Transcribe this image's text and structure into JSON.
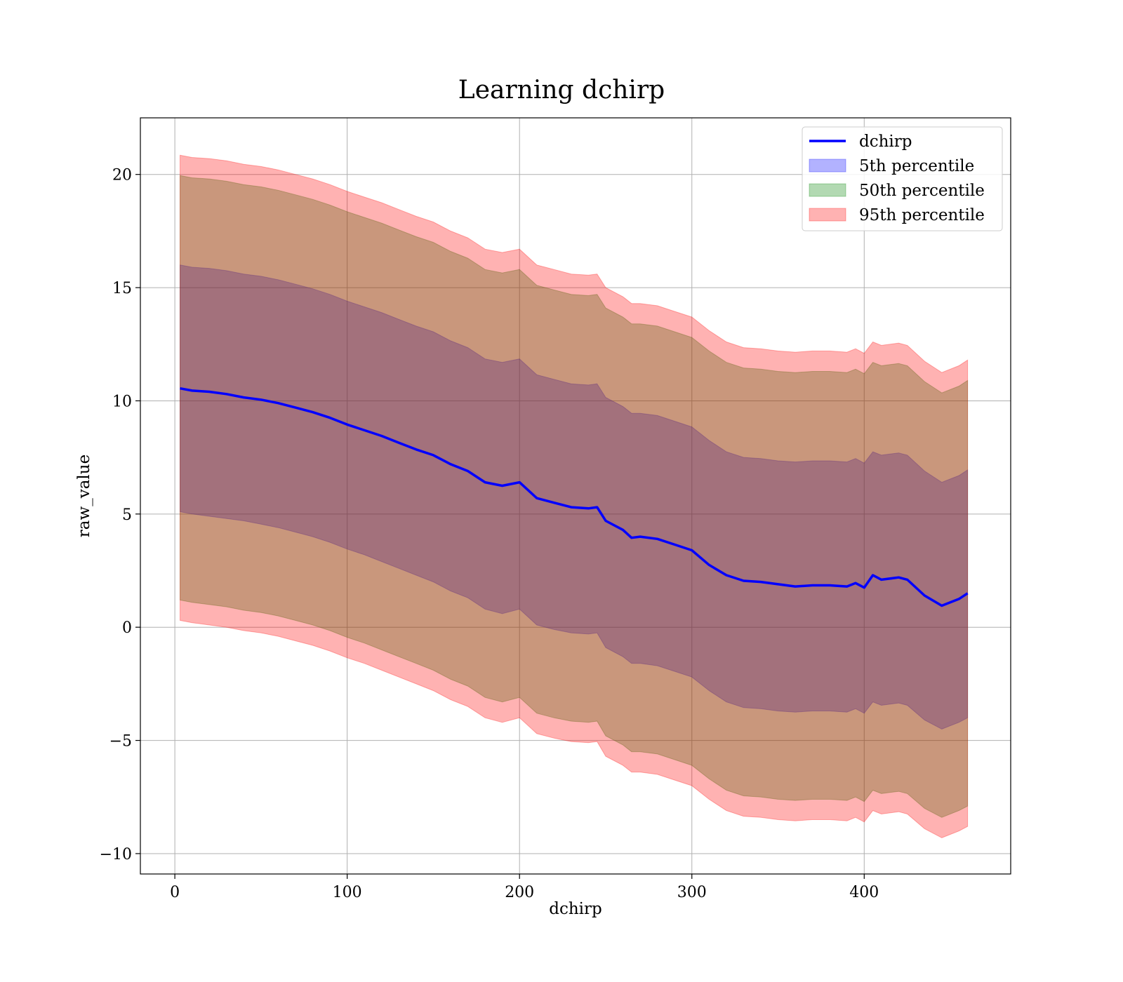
{
  "chart_data": {
    "type": "line",
    "title": "Learning dchirp",
    "xlabel": "dchirp",
    "ylabel": "raw_value",
    "xlim": [
      -20,
      485
    ],
    "ylim": [
      -10.9,
      22.5
    ],
    "xticks": [
      0,
      100,
      200,
      300,
      400
    ],
    "yticks": [
      -10,
      -5,
      0,
      5,
      10,
      15,
      20
    ],
    "xtick_labels": [
      "0",
      "100",
      "200",
      "300",
      "400"
    ],
    "ytick_labels": [
      "−10",
      "−5",
      "0",
      "5",
      "10",
      "15",
      "20"
    ],
    "grid": true,
    "legend_position": "upper right",
    "x": [
      3,
      10,
      20,
      30,
      40,
      50,
      60,
      70,
      80,
      90,
      100,
      110,
      120,
      130,
      140,
      150,
      160,
      170,
      180,
      190,
      200,
      210,
      220,
      230,
      240,
      245,
      250,
      260,
      265,
      270,
      280,
      290,
      300,
      310,
      320,
      330,
      340,
      350,
      360,
      370,
      380,
      390,
      395,
      400,
      405,
      410,
      420,
      425,
      435,
      445,
      455,
      460
    ],
    "series": [
      {
        "name": "dchirp",
        "color": "#0000ff",
        "values": [
          10.55,
          10.45,
          10.4,
          10.3,
          10.15,
          10.05,
          9.9,
          9.7,
          9.5,
          9.25,
          8.95,
          8.7,
          8.45,
          8.15,
          7.85,
          7.6,
          7.2,
          6.9,
          6.4,
          6.25,
          6.4,
          5.7,
          5.5,
          5.3,
          5.25,
          5.3,
          4.7,
          4.3,
          3.95,
          4.0,
          3.9,
          3.65,
          3.4,
          2.75,
          2.3,
          2.05,
          2.0,
          1.9,
          1.8,
          1.85,
          1.85,
          1.8,
          1.95,
          1.75,
          2.3,
          2.1,
          2.2,
          2.1,
          1.4,
          0.95,
          1.25,
          1.5
        ]
      },
      {
        "name": "5th percentile",
        "color": "#0000ff",
        "lower": [
          5.1,
          5.0,
          4.9,
          4.8,
          4.7,
          4.55,
          4.4,
          4.2,
          4.0,
          3.75,
          3.45,
          3.2,
          2.9,
          2.6,
          2.3,
          2.0,
          1.6,
          1.3,
          0.8,
          0.6,
          0.8,
          0.1,
          -0.1,
          -0.25,
          -0.3,
          -0.25,
          -0.9,
          -1.3,
          -1.6,
          -1.6,
          -1.7,
          -1.95,
          -2.2,
          -2.8,
          -3.3,
          -3.55,
          -3.6,
          -3.7,
          -3.75,
          -3.7,
          -3.7,
          -3.75,
          -3.6,
          -3.8,
          -3.3,
          -3.45,
          -3.35,
          -3.45,
          -4.1,
          -4.5,
          -4.2,
          -4.0
        ],
        "upper": [
          16.0,
          15.9,
          15.85,
          15.75,
          15.6,
          15.5,
          15.35,
          15.15,
          14.95,
          14.7,
          14.4,
          14.15,
          13.9,
          13.6,
          13.3,
          13.05,
          12.65,
          12.35,
          11.85,
          11.7,
          11.85,
          11.15,
          10.95,
          10.75,
          10.7,
          10.75,
          10.15,
          9.75,
          9.45,
          9.45,
          9.35,
          9.1,
          8.85,
          8.25,
          7.75,
          7.5,
          7.45,
          7.35,
          7.3,
          7.35,
          7.35,
          7.3,
          7.45,
          7.25,
          7.75,
          7.6,
          7.7,
          7.6,
          6.9,
          6.4,
          6.7,
          6.95
        ]
      },
      {
        "name": "50th percentile",
        "color": "#008000",
        "lower": [
          1.2,
          1.1,
          1.0,
          0.9,
          0.75,
          0.65,
          0.5,
          0.3,
          0.1,
          -0.15,
          -0.45,
          -0.7,
          -1.0,
          -1.3,
          -1.6,
          -1.9,
          -2.3,
          -2.6,
          -3.1,
          -3.3,
          -3.1,
          -3.8,
          -4.0,
          -4.15,
          -4.2,
          -4.15,
          -4.8,
          -5.2,
          -5.5,
          -5.5,
          -5.6,
          -5.85,
          -6.1,
          -6.7,
          -7.2,
          -7.45,
          -7.5,
          -7.6,
          -7.65,
          -7.6,
          -7.6,
          -7.65,
          -7.5,
          -7.7,
          -7.2,
          -7.35,
          -7.25,
          -7.35,
          -8.0,
          -8.4,
          -8.1,
          -7.9
        ],
        "upper": [
          19.95,
          19.85,
          19.8,
          19.7,
          19.55,
          19.45,
          19.3,
          19.1,
          18.9,
          18.65,
          18.35,
          18.1,
          17.85,
          17.55,
          17.25,
          17.0,
          16.6,
          16.3,
          15.8,
          15.65,
          15.8,
          15.1,
          14.9,
          14.7,
          14.65,
          14.7,
          14.1,
          13.7,
          13.4,
          13.4,
          13.3,
          13.05,
          12.8,
          12.2,
          11.7,
          11.45,
          11.4,
          11.3,
          11.25,
          11.3,
          11.3,
          11.25,
          11.4,
          11.2,
          11.7,
          11.55,
          11.65,
          11.55,
          10.85,
          10.35,
          10.65,
          10.9
        ]
      },
      {
        "name": "95th percentile",
        "color": "#ff0000",
        "lower": [
          0.3,
          0.2,
          0.1,
          0.0,
          -0.15,
          -0.25,
          -0.4,
          -0.6,
          -0.8,
          -1.05,
          -1.35,
          -1.6,
          -1.9,
          -2.2,
          -2.5,
          -2.8,
          -3.2,
          -3.5,
          -4.0,
          -4.2,
          -4.0,
          -4.7,
          -4.9,
          -5.05,
          -5.1,
          -5.05,
          -5.7,
          -6.1,
          -6.4,
          -6.4,
          -6.5,
          -6.75,
          -7.0,
          -7.6,
          -8.1,
          -8.35,
          -8.4,
          -8.5,
          -8.55,
          -8.5,
          -8.5,
          -8.55,
          -8.4,
          -8.6,
          -8.1,
          -8.25,
          -8.15,
          -8.25,
          -8.9,
          -9.3,
          -9.0,
          -8.8
        ],
        "upper": [
          20.85,
          20.75,
          20.7,
          20.6,
          20.45,
          20.35,
          20.2,
          20.0,
          19.8,
          19.55,
          19.25,
          19.0,
          18.75,
          18.45,
          18.15,
          17.9,
          17.5,
          17.2,
          16.7,
          16.55,
          16.7,
          16.0,
          15.8,
          15.6,
          15.55,
          15.6,
          15.0,
          14.6,
          14.3,
          14.3,
          14.2,
          13.95,
          13.7,
          13.1,
          12.6,
          12.35,
          12.3,
          12.2,
          12.15,
          12.2,
          12.2,
          12.15,
          12.3,
          12.1,
          12.6,
          12.45,
          12.55,
          12.45,
          11.75,
          11.25,
          11.55,
          11.8
        ]
      }
    ]
  }
}
